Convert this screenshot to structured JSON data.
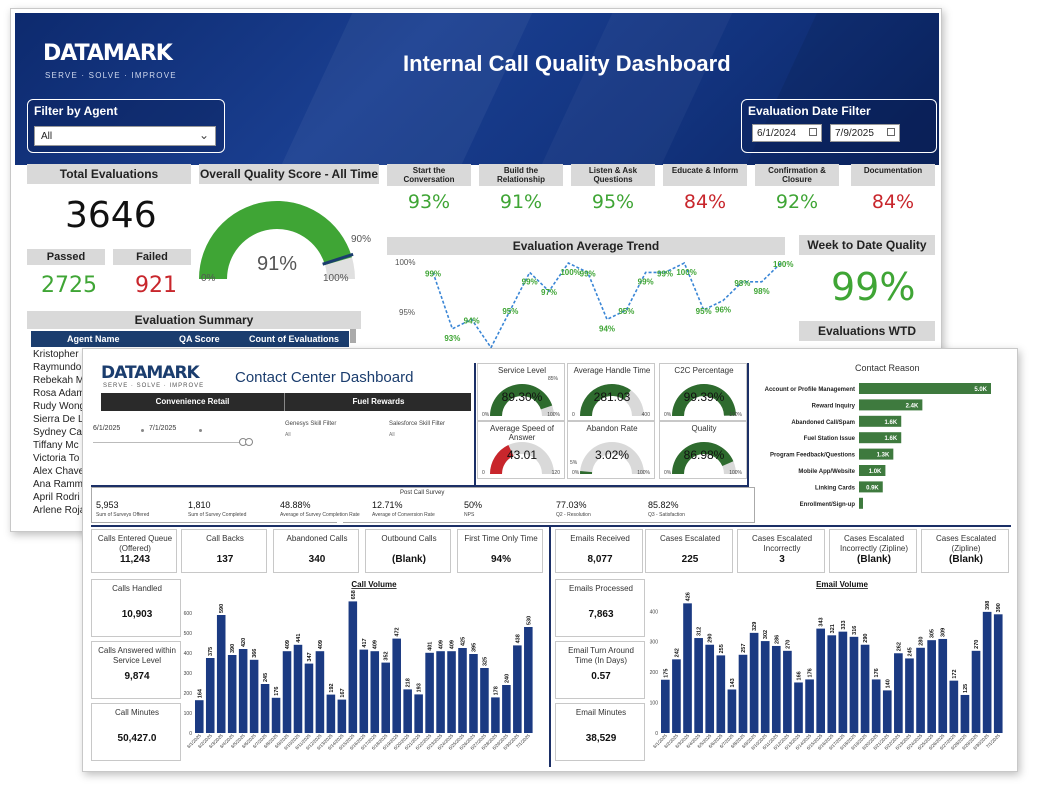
{
  "back": {
    "logo": "DATAMARK",
    "tagline": "SERVE · SOLVE · IMPROVE",
    "title": "Internal Call Quality Dashboard",
    "agent_filter": {
      "label": "Filter by Agent",
      "value": "All"
    },
    "date_filter": {
      "label": "Evaluation Date Filter",
      "start": "6/1/2024",
      "end": "7/9/2025"
    },
    "total_evaluations": {
      "label": "Total Evaluations",
      "value": "3646"
    },
    "passed": {
      "label": "Passed",
      "value": "2725"
    },
    "failed": {
      "label": "Failed",
      "value": "921"
    },
    "overall_quality": {
      "label": "Overall Quality Score - All Time",
      "value": "91%",
      "target": "90%",
      "min": "0%",
      "max": "100%",
      "fraction": 0.91
    },
    "categories": [
      {
        "label": "Start the Conversation",
        "value": "93%",
        "color": "#3fa535"
      },
      {
        "label": "Build the Relationship",
        "value": "91%",
        "color": "#3fa535"
      },
      {
        "label": "Listen & Ask Questions",
        "value": "95%",
        "color": "#3fa535"
      },
      {
        "label": "Educate & Inform",
        "value": "84%",
        "color": "#c8262c"
      },
      {
        "label": "Confirmation & Closure",
        "value": "92%",
        "color": "#3fa535"
      },
      {
        "label": "Documentation",
        "value": "84%",
        "color": "#c8262c"
      }
    ],
    "trend": {
      "title": "Evaluation Average Trend",
      "y_ticks": [
        "100%",
        "95%"
      ],
      "values": [
        99,
        93,
        94,
        91,
        95,
        99,
        97,
        100,
        99,
        94,
        95,
        99,
        99,
        100,
        95,
        96,
        98,
        98,
        100
      ],
      "labels": [
        "99%",
        "93%",
        "94%",
        "91%",
        "95%",
        "99%",
        "97%",
        "100%",
        "99%",
        "94%",
        "95%",
        "99%",
        "99%",
        "100%",
        "95%",
        "96%",
        "98%",
        "98%",
        "100%"
      ]
    },
    "week_to_date": {
      "label": "Week to Date Quality",
      "value": "99%"
    },
    "evaluations_wtd": {
      "label": "Evaluations WTD"
    },
    "summary": {
      "title": "Evaluation Summary",
      "columns": [
        "Agent Name",
        "QA Score",
        "Count of Evaluations"
      ],
      "agents": [
        "Kristopher",
        "Raymundo",
        "Rebekah M",
        "Rosa Adam",
        "Rudy Wong",
        "Sierra De L",
        "Sydney Car",
        "Tiffany Mc",
        "Victoria To",
        "Alex Chave",
        "Ana Ramm",
        "April Rodri",
        "Arlene Roja"
      ]
    }
  },
  "front": {
    "logo": "DATAMARK",
    "tagline": "SERVE · SOLVE · IMPROVE",
    "title": "Contact Center Dashboard",
    "tabs": [
      "Convenience Retail",
      "Fuel Rewards"
    ],
    "date_start": "6/1/2025",
    "date_end": "7/1/2025",
    "genesys_filter": {
      "label": "Genesys Skill Filter",
      "value": "All"
    },
    "salesforce_filter": {
      "label": "Salesforce Skill Filter",
      "value": "All"
    },
    "gauges": [
      {
        "title": "Service Level",
        "value": "89.30%",
        "min": "0%",
        "max": "100%",
        "target": "85%",
        "fraction": 0.893,
        "color": "#2e6b2e"
      },
      {
        "title": "Average Handle Time",
        "value": "281.03",
        "min": "0",
        "max": "400",
        "target": "",
        "fraction": 0.7,
        "color": "#2e6b2e"
      },
      {
        "title": "C2C Percentage",
        "value": "99.39%",
        "min": "0%",
        "max": "100%",
        "target": "",
        "fraction": 0.994,
        "color": "#2e6b2e"
      },
      {
        "title": "Average Speed of Answer",
        "value": "43.01",
        "min": "0",
        "max": "120",
        "target": "",
        "fraction": 0.36,
        "color": "#c8262c"
      },
      {
        "title": "Abandon Rate",
        "value": "3.02%",
        "min": "0%",
        "max": "100%",
        "target": "5%",
        "fraction": 0.03,
        "color": "#2e6b2e"
      },
      {
        "title": "Quality",
        "value": "86.98%",
        "min": "0%",
        "max": "100%",
        "target": "",
        "fraction": 0.87,
        "color": "#2e6b2e"
      }
    ],
    "contact_reason": {
      "title": "Contact Reason",
      "items": [
        {
          "label": "Account or Profile Management",
          "value": 5.0,
          "text": "5.0K"
        },
        {
          "label": "Reward Inquiry",
          "value": 2.4,
          "text": "2.4K"
        },
        {
          "label": "Abandoned Call/Spam",
          "value": 1.6,
          "text": "1.6K"
        },
        {
          "label": "Fuel Station Issue",
          "value": 1.6,
          "text": "1.6K"
        },
        {
          "label": "Program Feedback/Questions",
          "value": 1.3,
          "text": "1.3K"
        },
        {
          "label": "Mobile App/Website",
          "value": 1.0,
          "text": "1.0K"
        },
        {
          "label": "Linking Cards",
          "value": 0.9,
          "text": "0.9K"
        },
        {
          "label": "Enrollment/Sign-up",
          "value": 0.1,
          "text": ""
        }
      ]
    },
    "survey": {
      "title": "Post Call Survey",
      "items": [
        {
          "value": "5,953",
          "label": "Sum of Surveys Offered"
        },
        {
          "value": "1,810",
          "label": "Sum of Survey Completed"
        },
        {
          "value": "48.88%",
          "label": "Average of Survey Completion Rate"
        },
        {
          "value": "12.71%",
          "label": "Average of Conversion Rate"
        },
        {
          "value": "50%",
          "label": "NPS"
        },
        {
          "value": "77.03%",
          "label": "Q2 - Resolution"
        },
        {
          "value": "85.82%",
          "label": "Q3 - Satisfaction"
        }
      ]
    },
    "call_cards_top": [
      {
        "label": "Calls Entered Queue (Offered)",
        "value": "11,243"
      },
      {
        "label": "Call Backs",
        "value": "137"
      },
      {
        "label": "Abandoned Calls",
        "value": "340"
      },
      {
        "label": "Outbound Calls",
        "value": "(Blank)"
      },
      {
        "label": "First Time Only Time",
        "value": "94%"
      }
    ],
    "call_cards_side": [
      {
        "label": "Calls Handled",
        "value": "10,903"
      },
      {
        "label": "Calls Answered within Service Level",
        "value": "9,874"
      },
      {
        "label": "Call Minutes",
        "value": "50,427.0"
      }
    ],
    "email_cards_top": [
      {
        "label": "Emails Received",
        "value": "8,077"
      },
      {
        "label": "Cases Escalated",
        "value": "225"
      },
      {
        "label": "Cases Escalated Incorrectly",
        "value": "3"
      },
      {
        "label": "Cases Escalated Incorrectly (Zipline)",
        "value": "(Blank)"
      },
      {
        "label": "Cases Escalated (Zipline)",
        "value": "(Blank)"
      }
    ],
    "email_cards_side": [
      {
        "label": "Emails Processed",
        "value": "7,863"
      },
      {
        "label": "Email Turn Around Time (In Days)",
        "value": "0.57"
      },
      {
        "label": "Email Minutes",
        "value": "38,529"
      }
    ]
  },
  "chart_data": [
    {
      "type": "bar",
      "title": "Call Volume",
      "y_ticks": [
        0,
        100,
        200,
        300,
        400,
        500,
        600
      ],
      "ylim": [
        0,
        700
      ],
      "x": [
        "6/1/2025",
        "6/2/2025",
        "6/3/2025",
        "6/4/2025",
        "6/5/2025",
        "6/6/2025",
        "6/7/2025",
        "6/8/2025",
        "6/9/2025",
        "6/10/2025",
        "6/11/2025",
        "6/12/2025",
        "6/13/2025",
        "6/14/2025",
        "6/15/2025",
        "6/16/2025",
        "6/17/2025",
        "6/18/2025",
        "6/19/2025",
        "6/20/2025",
        "6/21/2025",
        "6/22/2025",
        "6/23/2025",
        "6/24/2025",
        "6/25/2025",
        "6/26/2025",
        "6/27/2025",
        "6/28/2025",
        "6/29/2025",
        "6/30/2025",
        "7/1/2025"
      ],
      "values": [
        164,
        375,
        590,
        390,
        420,
        366,
        245,
        176,
        409,
        441,
        347,
        409,
        192,
        167,
        658,
        417,
        409,
        352,
        472,
        218,
        193,
        401,
        409,
        409,
        425,
        395,
        325,
        178,
        240,
        438,
        530
      ]
    },
    {
      "type": "bar",
      "title": "Email Volume",
      "y_ticks": [
        0,
        100,
        200,
        300,
        400
      ],
      "ylim": [
        0,
        460
      ],
      "x": [
        "6/1/2025",
        "6/2/2025",
        "6/3/2025",
        "6/4/2025",
        "6/5/2025",
        "6/6/2025",
        "6/7/2025",
        "6/8/2025",
        "6/9/2025",
        "6/10/2025",
        "6/11/2025",
        "6/12/2025",
        "6/13/2025",
        "6/14/2025",
        "6/15/2025",
        "6/16/2025",
        "6/17/2025",
        "6/18/2025",
        "6/19/2025",
        "6/20/2025",
        "6/21/2025",
        "6/22/2025",
        "6/23/2025",
        "6/24/2025",
        "6/25/2025",
        "6/26/2025",
        "6/27/2025",
        "6/28/2025",
        "6/29/2025",
        "6/30/2025",
        "7/1/2025"
      ],
      "values": [
        175,
        242,
        426,
        312,
        290,
        255,
        143,
        257,
        329,
        302,
        286,
        270,
        166,
        176,
        343,
        321,
        333,
        316,
        290,
        176,
        140,
        262,
        245,
        280,
        305,
        309,
        172,
        125,
        270,
        398,
        390
      ]
    }
  ]
}
